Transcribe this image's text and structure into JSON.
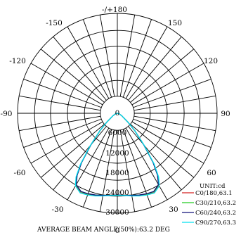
{
  "chart_data": {
    "type": "polar",
    "unit_label": "UNIT:cd",
    "footer": "AVERAGE BEAM ANGLE(50%):63.2 DEG",
    "angle_ticks": [
      {
        "angle": 0,
        "label": "0"
      },
      {
        "angle": 30,
        "label": "30"
      },
      {
        "angle": -30,
        "label": "-30"
      },
      {
        "angle": 60,
        "label": "60"
      },
      {
        "angle": -60,
        "label": "-60"
      },
      {
        "angle": 90,
        "label": "90"
      },
      {
        "angle": -90,
        "label": "-90"
      },
      {
        "angle": 120,
        "label": "120"
      },
      {
        "angle": -120,
        "label": "-120"
      },
      {
        "angle": 150,
        "label": "150"
      },
      {
        "angle": -150,
        "label": "-150"
      },
      {
        "angle": 180,
        "label": "-/+180"
      }
    ],
    "radial_ticks": [
      "0",
      "6000",
      "12000",
      "18000",
      "24000",
      "30000"
    ],
    "r_max": 30000,
    "ring_values": [
      6000,
      12000,
      18000,
      24000,
      30000
    ],
    "series": [
      {
        "name": "C0/180,63.1",
        "color": "#d42020",
        "angles": [
          0,
          5,
          10,
          15,
          20,
          25,
          30,
          33,
          36,
          40,
          45,
          50,
          60,
          70,
          80,
          90
        ],
        "values": [
          24500,
          24700,
          25000,
          25500,
          26000,
          26300,
          25000,
          22500,
          18500,
          12500,
          7500,
          4200,
          1600,
          700,
          250,
          0
        ]
      },
      {
        "name": "C30/210,63.2",
        "color": "#20cc20",
        "angles": [
          0,
          5,
          10,
          15,
          20,
          25,
          30,
          33,
          36,
          40,
          45,
          50,
          60,
          70,
          80,
          90
        ],
        "values": [
          24500,
          24700,
          25000,
          25400,
          25800,
          26000,
          24800,
          22300,
          18400,
          12400,
          7400,
          4200,
          1600,
          700,
          250,
          0
        ]
      },
      {
        "name": "C60/240,63.2",
        "color": "#10107a",
        "angles": [
          0,
          5,
          10,
          15,
          20,
          25,
          30,
          33,
          36,
          40,
          45,
          50,
          60,
          70,
          80,
          90
        ],
        "values": [
          24500,
          24700,
          25000,
          25400,
          25700,
          25900,
          24700,
          22200,
          18300,
          12300,
          7400,
          4100,
          1600,
          700,
          250,
          0
        ]
      },
      {
        "name": "C90/270,63.3",
        "color": "#00e0f0",
        "angles": [
          0,
          5,
          10,
          15,
          20,
          25,
          30,
          33,
          36,
          40,
          45,
          50,
          60,
          70,
          80,
          90
        ],
        "values": [
          24600,
          24800,
          25200,
          25700,
          26100,
          26400,
          25200,
          22800,
          18800,
          12600,
          7500,
          4200,
          1600,
          700,
          250,
          0
        ]
      }
    ]
  }
}
